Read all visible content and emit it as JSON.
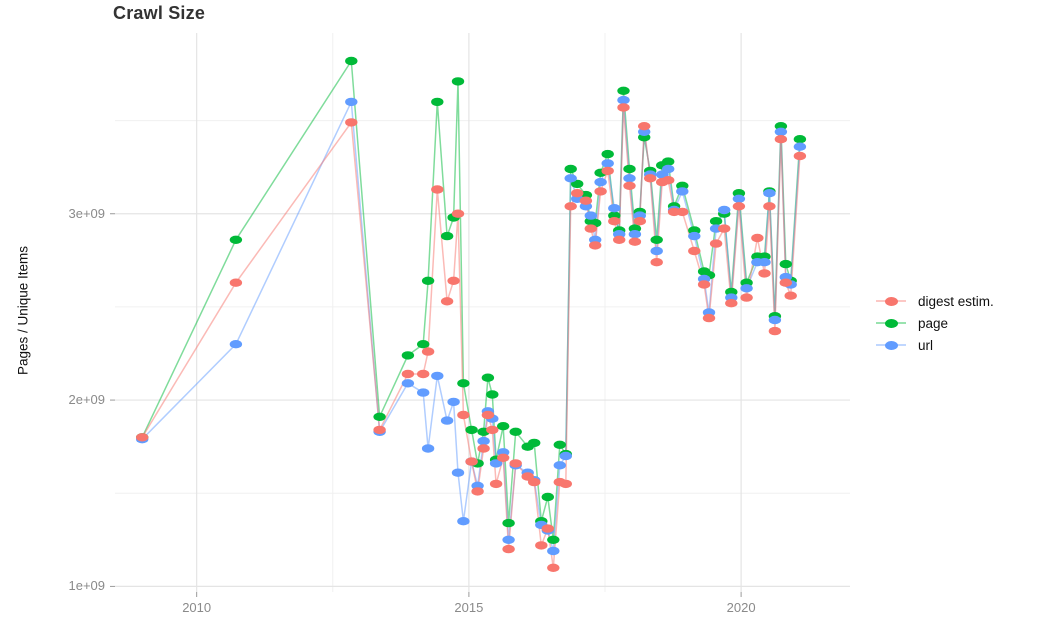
{
  "page": {
    "title": "Crawl Size",
    "y_axis_title": "Pages / Unique Items"
  },
  "legend": {
    "items": [
      {
        "label": "digest estim.",
        "color": "#F8766D"
      },
      {
        "label": "page",
        "color": "#00BA38"
      },
      {
        "label": "url",
        "color": "#619CFF"
      }
    ]
  },
  "chart_data": {
    "type": "line",
    "title": "Crawl Size",
    "xlabel": "",
    "ylabel": "Pages / Unique Items",
    "legend_position": "right",
    "grid": true,
    "x_unit": "year (crawl date)",
    "y_unit": "count, 1.0 = 1e+09 (billions of pages / unique items)",
    "axis": {
      "x": {
        "min": 2008.5,
        "max": 2022.0,
        "ticks": [
          2010,
          2015,
          2020
        ],
        "tick_labels": [
          "2010",
          "2015",
          "2020"
        ],
        "minor_ticks": [
          2012.5,
          2017.5
        ]
      },
      "y": {
        "min": 0.97,
        "max": 3.97,
        "ticks": [
          1,
          2,
          3
        ],
        "tick_labels": [
          "1e+09",
          "2e+09",
          "3e+09"
        ],
        "minor_ticks": [
          1.5,
          2.5,
          3.5
        ]
      }
    },
    "series": [
      {
        "name": "digest estim.",
        "key": "digest",
        "color": "#F8766D"
      },
      {
        "name": "page",
        "key": "page",
        "color": "#00BA38"
      },
      {
        "name": "url",
        "key": "url",
        "color": "#619CFF"
      }
    ],
    "points": [
      {
        "x": 2009.0,
        "page": 1.8,
        "digest": 1.8,
        "url": 1.79
      },
      {
        "x": 2010.72,
        "page": 2.86,
        "digest": 2.63,
        "url": 2.3
      },
      {
        "x": 2012.84,
        "page": 3.82,
        "digest": 3.49,
        "url": 3.6
      },
      {
        "x": 2013.36,
        "page": 1.91,
        "digest": 1.84,
        "url": 1.83
      },
      {
        "x": 2013.88,
        "page": 2.24,
        "digest": 2.14,
        "url": 2.09
      },
      {
        "x": 2014.16,
        "page": 2.3,
        "digest": 2.14,
        "url": 2.04
      },
      {
        "x": 2014.25,
        "page": 2.64,
        "digest": 2.26,
        "url": 1.74
      },
      {
        "x": 2014.42,
        "page": 3.6,
        "digest": 3.13,
        "url": 2.13
      },
      {
        "x": 2014.6,
        "page": 2.88,
        "digest": 2.53,
        "url": 1.89
      },
      {
        "x": 2014.72,
        "page": 2.98,
        "digest": 2.64,
        "url": 1.99
      },
      {
        "x": 2014.8,
        "page": 3.71,
        "digest": 3.0,
        "url": 1.61
      },
      {
        "x": 2014.9,
        "page": 2.09,
        "digest": 1.92,
        "url": 1.35
      },
      {
        "x": 2015.05,
        "page": 1.84,
        "digest": 1.67,
        "url": 1.67
      },
      {
        "x": 2015.16,
        "page": 1.66,
        "digest": 1.51,
        "url": 1.54
      },
      {
        "x": 2015.27,
        "page": 1.83,
        "digest": 1.74,
        "url": 1.78
      },
      {
        "x": 2015.35,
        "page": 2.12,
        "digest": 1.92,
        "url": 1.94
      },
      {
        "x": 2015.43,
        "page": 2.03,
        "digest": 1.84,
        "url": 1.9
      },
      {
        "x": 2015.5,
        "page": 1.68,
        "digest": 1.55,
        "url": 1.66
      },
      {
        "x": 2015.63,
        "page": 1.86,
        "digest": 1.69,
        "url": 1.72
      },
      {
        "x": 2015.73,
        "page": 1.34,
        "digest": 1.2,
        "url": 1.25
      },
      {
        "x": 2015.86,
        "page": 1.83,
        "digest": 1.66,
        "url": 1.65
      },
      {
        "x": 2016.08,
        "page": 1.75,
        "digest": 1.59,
        "url": 1.61
      },
      {
        "x": 2016.2,
        "page": 1.77,
        "digest": 1.56,
        "url": 1.57
      },
      {
        "x": 2016.33,
        "page": 1.35,
        "digest": 1.22,
        "url": 1.33
      },
      {
        "x": 2016.45,
        "page": 1.48,
        "digest": 1.31,
        "url": 1.3
      },
      {
        "x": 2016.55,
        "page": 1.25,
        "digest": 1.1,
        "url": 1.19
      },
      {
        "x": 2016.67,
        "page": 1.76,
        "digest": 1.56,
        "url": 1.65
      },
      {
        "x": 2016.78,
        "page": 1.71,
        "digest": 1.55,
        "url": 1.7
      },
      {
        "x": 2016.87,
        "page": 3.24,
        "digest": 3.04,
        "url": 3.19
      },
      {
        "x": 2016.99,
        "page": 3.16,
        "digest": 3.11,
        "url": 3.08
      },
      {
        "x": 2017.15,
        "page": 3.1,
        "digest": 3.07,
        "url": 3.04
      },
      {
        "x": 2017.24,
        "page": 2.96,
        "digest": 2.92,
        "url": 2.99
      },
      {
        "x": 2017.32,
        "page": 2.95,
        "digest": 2.83,
        "url": 2.86
      },
      {
        "x": 2017.42,
        "page": 3.22,
        "digest": 3.12,
        "url": 3.17
      },
      {
        "x": 2017.55,
        "page": 3.32,
        "digest": 3.23,
        "url": 3.27
      },
      {
        "x": 2017.67,
        "page": 2.99,
        "digest": 2.96,
        "url": 3.03
      },
      {
        "x": 2017.76,
        "page": 2.91,
        "digest": 2.86,
        "url": 2.89
      },
      {
        "x": 2017.84,
        "page": 3.66,
        "digest": 3.57,
        "url": 3.61
      },
      {
        "x": 2017.95,
        "page": 3.24,
        "digest": 3.15,
        "url": 3.19
      },
      {
        "x": 2018.05,
        "page": 2.92,
        "digest": 2.85,
        "url": 2.89
      },
      {
        "x": 2018.14,
        "page": 3.01,
        "digest": 2.96,
        "url": 2.99
      },
      {
        "x": 2018.22,
        "page": 3.41,
        "digest": 3.47,
        "url": 3.44
      },
      {
        "x": 2018.33,
        "page": 3.23,
        "digest": 3.19,
        "url": 3.21
      },
      {
        "x": 2018.45,
        "page": 2.86,
        "digest": 2.74,
        "url": 2.8
      },
      {
        "x": 2018.55,
        "page": 3.26,
        "digest": 3.17,
        "url": 3.21
      },
      {
        "x": 2018.66,
        "page": 3.28,
        "digest": 3.18,
        "url": 3.24
      },
      {
        "x": 2018.77,
        "page": 3.04,
        "digest": 3.01,
        "url": 3.02
      },
      {
        "x": 2018.92,
        "page": 3.15,
        "digest": 3.01,
        "url": 3.12
      },
      {
        "x": 2019.14,
        "page": 2.91,
        "digest": 2.8,
        "url": 2.88
      },
      {
        "x": 2019.32,
        "page": 2.69,
        "digest": 2.62,
        "url": 2.65
      },
      {
        "x": 2019.41,
        "page": 2.67,
        "digest": 2.44,
        "url": 2.47
      },
      {
        "x": 2019.54,
        "page": 2.96,
        "digest": 2.84,
        "url": 2.92
      },
      {
        "x": 2019.69,
        "page": 3.0,
        "digest": 2.92,
        "url": 3.02
      },
      {
        "x": 2019.82,
        "page": 2.58,
        "digest": 2.52,
        "url": 2.55
      },
      {
        "x": 2019.96,
        "page": 3.11,
        "digest": 3.04,
        "url": 3.08
      },
      {
        "x": 2020.1,
        "page": 2.63,
        "digest": 2.55,
        "url": 2.6
      },
      {
        "x": 2020.3,
        "page": 2.77,
        "digest": 2.87,
        "url": 2.74
      },
      {
        "x": 2020.43,
        "page": 2.77,
        "digest": 2.68,
        "url": 2.74
      },
      {
        "x": 2020.52,
        "page": 3.12,
        "digest": 3.04,
        "url": 3.11
      },
      {
        "x": 2020.62,
        "page": 2.45,
        "digest": 2.37,
        "url": 2.43
      },
      {
        "x": 2020.73,
        "page": 3.47,
        "digest": 3.4,
        "url": 3.44
      },
      {
        "x": 2020.82,
        "page": 2.73,
        "digest": 2.63,
        "url": 2.66
      },
      {
        "x": 2020.91,
        "page": 2.64,
        "digest": 2.56,
        "url": 2.62
      },
      {
        "x": 2021.08,
        "page": 3.4,
        "digest": 3.31,
        "url": 3.36
      }
    ]
  }
}
